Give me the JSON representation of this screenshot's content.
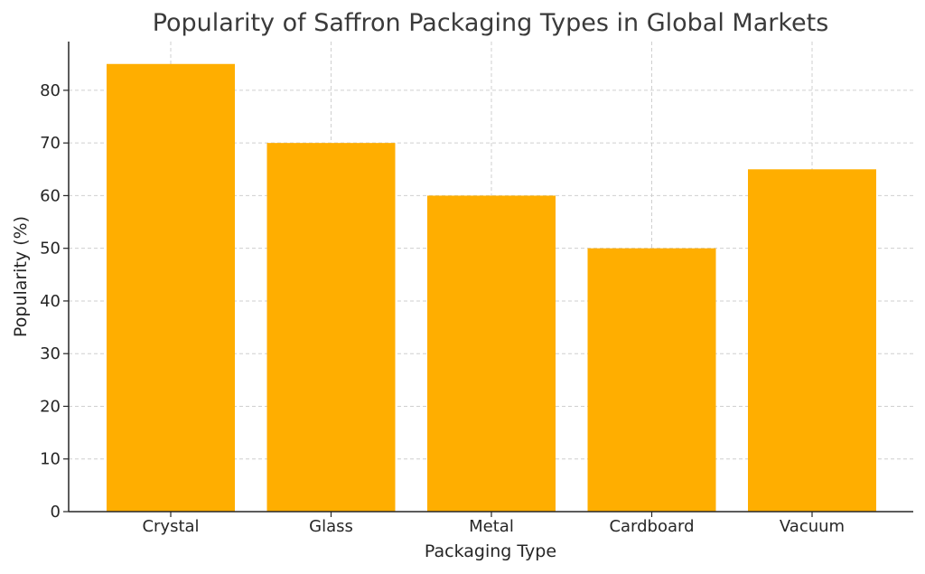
{
  "chart_data": {
    "type": "bar",
    "title": "Popularity of Saffron Packaging Types in Global Markets",
    "xlabel": "Packaging Type",
    "ylabel": "Popularity (%)",
    "categories": [
      "Crystal",
      "Glass",
      "Metal",
      "Cardboard",
      "Vacuum"
    ],
    "values": [
      85,
      70,
      60,
      50,
      65
    ],
    "ylim": [
      0,
      89.25
    ],
    "yticks": [
      0,
      10,
      20,
      30,
      40,
      50,
      60,
      70,
      80
    ],
    "grid": true,
    "bar_color": "#FFAE00"
  }
}
